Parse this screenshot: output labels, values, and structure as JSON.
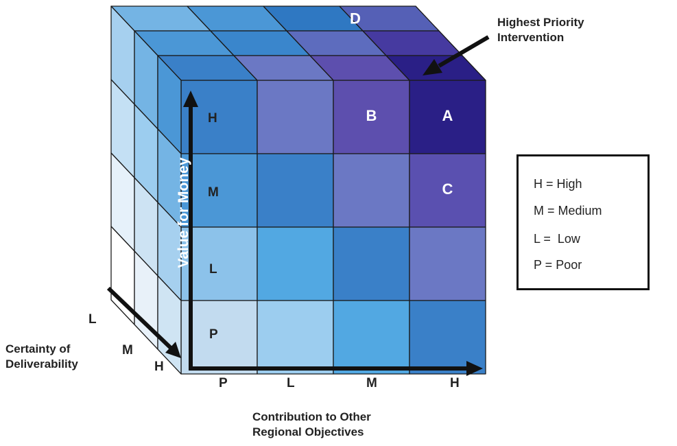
{
  "front_rows": [
    "H",
    "M",
    "L",
    "P"
  ],
  "front_cols": [
    "P",
    "L",
    "M",
    "H"
  ],
  "depth_levels": [
    "L",
    "M",
    "H"
  ],
  "front_colors": [
    [
      "#3a80c8",
      "#6b78c4",
      "#5d4fae",
      "#2a1f86"
    ],
    [
      "#4b97d6",
      "#3a80c8",
      "#6b78c4",
      "#5a50b0"
    ],
    [
      "#8cc2ea",
      "#52a8e2",
      "#3a80c8",
      "#6b78c4"
    ],
    [
      "#c2dbef",
      "#9ccdef",
      "#52a8e2",
      "#3a80c8"
    ]
  ],
  "top_colors": [
    [
      "#74b4e4",
      "#4b97d6",
      "#2f78c2",
      "#5560b6"
    ],
    [
      "#4b97d6",
      "#3a86cc",
      "#5d6cbe",
      "#463aa0"
    ],
    [
      "#3a80c8",
      "#6b78c4",
      "#5d4fae",
      "#2a1f86"
    ]
  ],
  "side_colors": [
    [
      "#a6d0ef",
      "#c4e0f4",
      "#e6f1fa",
      "#ffffff"
    ],
    [
      "#74b4e4",
      "#9ccdef",
      "#cde3f3",
      "#e8f1f9"
    ],
    [
      "#4b97d6",
      "#74b4e4",
      "#a6d0ef",
      "#cfe4f3"
    ]
  ],
  "cell_markers": [
    {
      "row": 0,
      "col": 2,
      "text": "B"
    },
    {
      "row": 0,
      "col": 3,
      "text": "A"
    },
    {
      "row": 1,
      "col": 3,
      "text": "C"
    }
  ],
  "top_marker": {
    "row": 0,
    "col": 2,
    "text": "D"
  },
  "axis_y_label": "Value for Money",
  "axis_x_label_line1": "Contribution to Other",
  "axis_x_label_line2": "Regional Objectives",
  "axis_depth_label_line1": "Certainty of",
  "axis_depth_label_line2": "Deliverability",
  "callout_line1": "Highest Priority",
  "callout_line2": "Intervention",
  "legend": [
    {
      "text": "H = High"
    },
    {
      "text": "M = Medium"
    },
    {
      "text": "L =  Low"
    },
    {
      "text": "P = Poor"
    }
  ]
}
